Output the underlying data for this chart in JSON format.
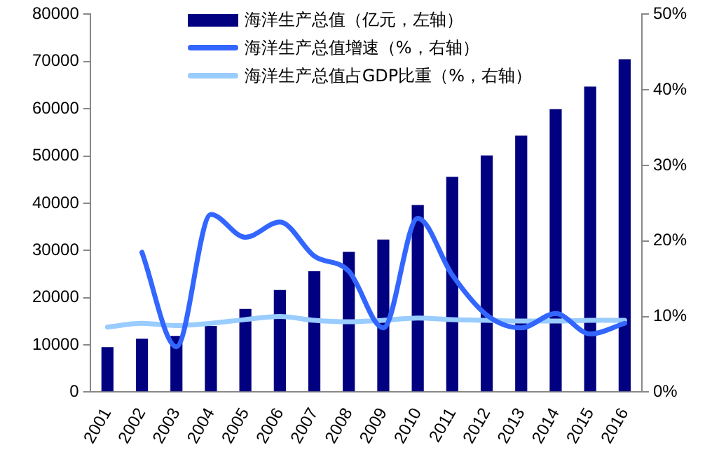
{
  "chart_data": {
    "type": "bar",
    "categories": [
      "2001",
      "2002",
      "2003",
      "2004",
      "2005",
      "2006",
      "2007",
      "2008",
      "2009",
      "2010",
      "2011",
      "2012",
      "2013",
      "2014",
      "2015",
      "2016"
    ],
    "series": [
      {
        "name": "海洋生产总值（亿元，左轴）",
        "color": "#000080",
        "values": [
          9500,
          11300,
          11900,
          14000,
          17600,
          21600,
          25600,
          29700,
          32300,
          39600,
          45600,
          50100,
          54300,
          59900,
          64700,
          70500
        ]
      },
      {
        "name": "海洋生产总值增速（%，右轴）",
        "color": "#3366ff",
        "type": "line",
        "axis": "y2",
        "values": [
          null,
          18.5,
          6,
          23.5,
          20.5,
          22.5,
          18,
          16,
          8.5,
          23,
          15.5,
          10.2,
          8.5,
          10.4,
          7.7,
          9.1
        ]
      },
      {
        "name": "海洋生产总值占GDP比重（%，右轴）",
        "color": "#99ccff",
        "type": "line",
        "axis": "y2",
        "values": [
          8.6,
          9.1,
          8.8,
          9.1,
          9.6,
          10,
          9.5,
          9.3,
          9.5,
          9.8,
          9.6,
          9.5,
          9.4,
          9.4,
          9.5,
          9.5
        ]
      }
    ],
    "ylim": [
      0,
      80000
    ],
    "yticks": [
      0,
      10000,
      20000,
      30000,
      40000,
      50000,
      60000,
      70000,
      80000
    ],
    "y2lim": [
      0,
      50
    ],
    "y2ticks": [
      {
        "value": 0,
        "label": "0%"
      },
      {
        "value": 10,
        "label": "10%"
      },
      {
        "value": 20,
        "label": "20%"
      },
      {
        "value": 30,
        "label": "30%"
      },
      {
        "value": 40,
        "label": "40%"
      },
      {
        "value": 50,
        "label": "50%"
      }
    ],
    "grid": false,
    "legend": "top",
    "marker": "none"
  }
}
